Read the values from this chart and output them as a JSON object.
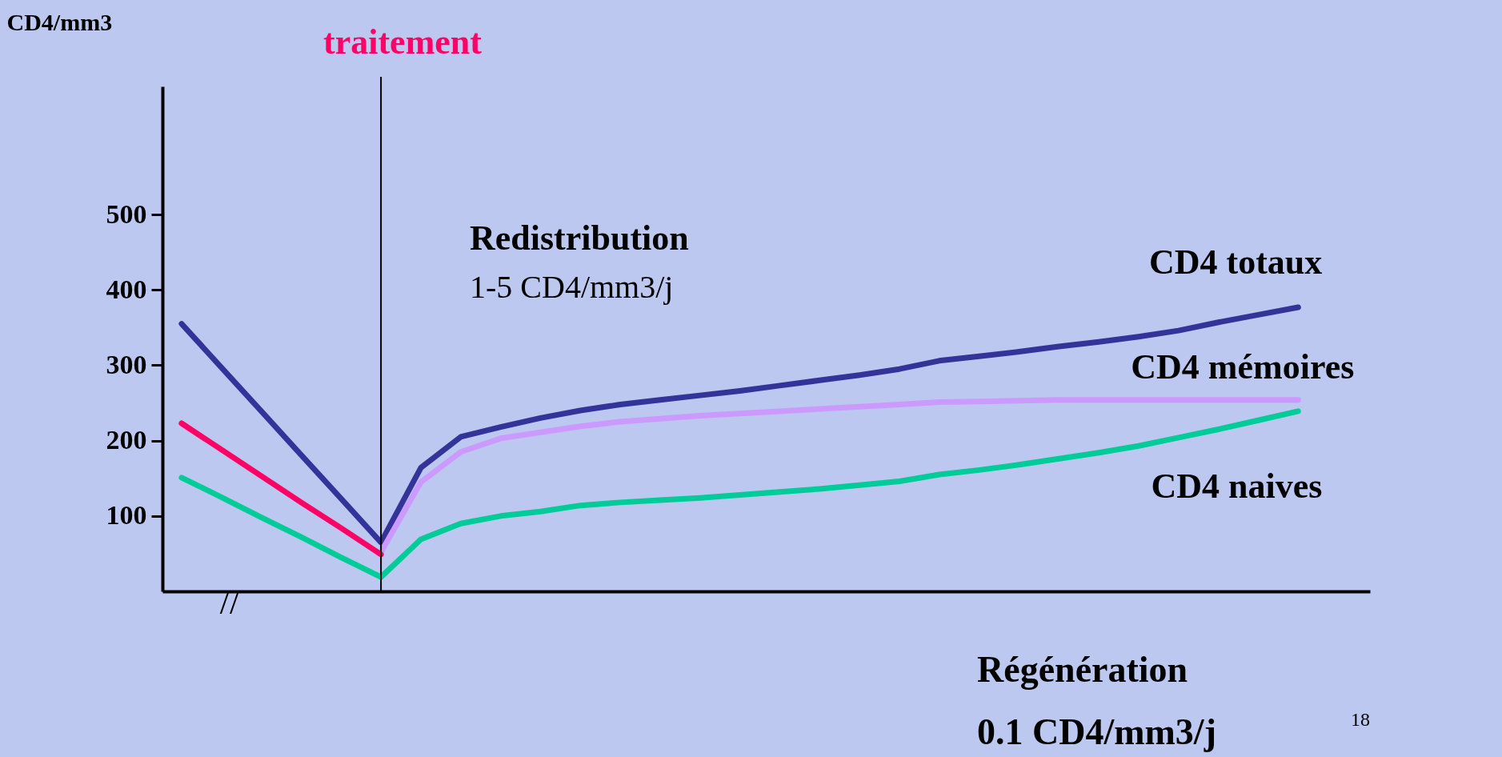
{
  "chart_data": {
    "type": "line",
    "ylabel": "CD4/mm3",
    "categories": [
      null,
      null,
      null,
      null,
      null,
      null,
      null,
      null,
      null,
      null,
      null,
      null,
      null,
      null,
      null,
      null,
      null,
      null,
      null,
      null,
      null,
      null,
      null,
      null,
      null,
      null,
      null,
      null,
      null
    ],
    "ylim": [
      0,
      670
    ],
    "yticks": [
      100,
      200,
      300,
      400,
      500
    ],
    "tick_labels": "y",
    "legend": false,
    "series": [
      {
        "name": "CD4 totaux",
        "color": "#333399",
        "values": [
          355,
          297,
          239,
          181,
          123,
          65,
          164,
          205,
          218,
          230,
          240,
          248,
          254,
          260,
          266,
          273,
          280,
          287,
          295,
          306,
          312,
          318,
          325,
          331,
          338,
          346,
          357,
          367,
          377
        ]
      },
      {
        "name": "CD4 mémoires",
        "color": "#cc99ff",
        "values": [
          null,
          null,
          null,
          null,
          null,
          52,
          145,
          185,
          203,
          211,
          219,
          225,
          229,
          233,
          236,
          239,
          242,
          245,
          248,
          251,
          252,
          253,
          254,
          254,
          254,
          254,
          254,
          254,
          254
        ]
      },
      {
        "name": "CD4 naives",
        "color": "#00cc99",
        "values": [
          151,
          125,
          98,
          72,
          45,
          19,
          69,
          90,
          100,
          106,
          114,
          118,
          121,
          124,
          128,
          132,
          136,
          141,
          146,
          155,
          161,
          168,
          176,
          184,
          193,
          204,
          215,
          227,
          239
        ]
      },
      {
        "color": "#ff0066",
        "values": [
          223,
          188,
          153,
          118,
          84,
          49,
          null,
          null,
          null,
          null,
          null,
          null,
          null,
          null,
          null,
          null,
          null,
          null,
          null,
          null,
          null,
          null,
          null,
          null,
          null,
          null,
          null,
          null,
          null
        ]
      }
    ],
    "annotations": [
      "traitement",
      "Redistribution",
      "1-5 CD4/mm3/j",
      "Régénération",
      "0.1 CD4/mm3/j",
      "18",
      "//"
    ]
  }
}
